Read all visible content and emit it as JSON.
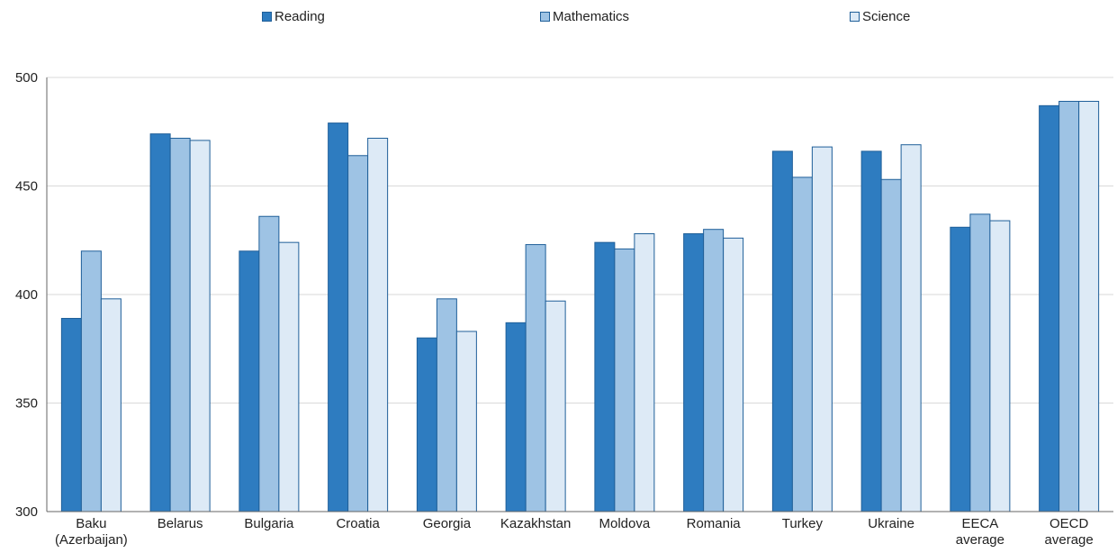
{
  "chart_data": {
    "type": "bar",
    "title": "",
    "xlabel": "",
    "ylabel": "",
    "ylim": [
      300,
      500
    ],
    "yticks": [
      300,
      350,
      400,
      450,
      500
    ],
    "grid": "horizontal",
    "legend_position": "top",
    "categories": [
      [
        "Baku",
        "(Azerbaijan)"
      ],
      [
        "Belarus"
      ],
      [
        "Bulgaria"
      ],
      [
        "Croatia"
      ],
      [
        "Georgia"
      ],
      [
        "Kazakhstan"
      ],
      [
        "Moldova"
      ],
      [
        "Romania"
      ],
      [
        "Turkey"
      ],
      [
        "Ukraine"
      ],
      [
        "EECA",
        "average"
      ],
      [
        "OECD",
        "average"
      ]
    ],
    "series": [
      {
        "name": "Reading",
        "color": "#2e7cc0",
        "values": [
          389,
          474,
          420,
          479,
          380,
          387,
          424,
          428,
          466,
          466,
          431,
          487
        ]
      },
      {
        "name": "Mathematics",
        "color": "#9ec3e4",
        "values": [
          420,
          472,
          436,
          464,
          398,
          423,
          421,
          430,
          454,
          453,
          437,
          489
        ]
      },
      {
        "name": "Science",
        "color": "#ddeaf6",
        "values": [
          398,
          471,
          424,
          472,
          383,
          397,
          428,
          426,
          468,
          469,
          434,
          489
        ]
      }
    ]
  }
}
